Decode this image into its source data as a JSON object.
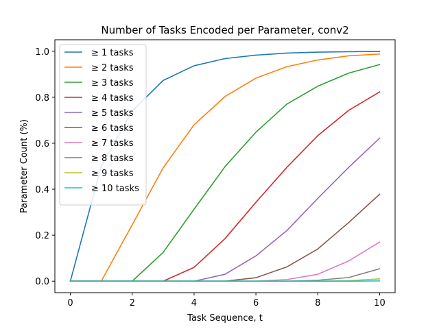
{
  "chart_data": {
    "type": "line",
    "title": "Number of Tasks Encoded per Parameter, conv2",
    "xlabel": "Task Sequence, t",
    "ylabel": "Parameter Count (%)",
    "xlim": [
      -0.5,
      10.5
    ],
    "ylim": [
      -0.05,
      1.05
    ],
    "xticks": [
      0,
      2,
      4,
      6,
      8,
      10
    ],
    "yticks": [
      0.0,
      0.2,
      0.4,
      0.6,
      0.8,
      1.0
    ],
    "xtick_labels": [
      "0",
      "2",
      "4",
      "6",
      "8",
      "10"
    ],
    "ytick_labels": [
      "0.0",
      "0.2",
      "0.4",
      "0.6",
      "0.8",
      "1.0"
    ],
    "grid": false,
    "legend_position": "top-left",
    "x": [
      0,
      1,
      2,
      3,
      4,
      5,
      6,
      7,
      8,
      9,
      10
    ],
    "series": [
      {
        "name": "≥ 1 tasks",
        "color": "#1f77b4",
        "values": [
          0.0,
          0.5,
          0.74,
          0.873,
          0.937,
          0.968,
          0.983,
          0.992,
          0.996,
          0.998,
          0.999
        ]
      },
      {
        "name": "≥ 2 tasks",
        "color": "#ff7f0e",
        "values": [
          0.0,
          0.0,
          0.245,
          0.493,
          0.68,
          0.803,
          0.883,
          0.933,
          0.962,
          0.98,
          0.988
        ]
      },
      {
        "name": "≥ 3 tasks",
        "color": "#2ca02c",
        "values": [
          0.0,
          0.0,
          0.0,
          0.125,
          0.313,
          0.498,
          0.648,
          0.77,
          0.848,
          0.905,
          0.942
        ]
      },
      {
        "name": "≥ 4 tasks",
        "color": "#d62728",
        "values": [
          0.0,
          0.0,
          0.0,
          0.0,
          0.06,
          0.185,
          0.343,
          0.495,
          0.633,
          0.743,
          0.823
        ]
      },
      {
        "name": "≥ 5 tasks",
        "color": "#9467bd",
        "values": [
          0.0,
          0.0,
          0.0,
          0.0,
          0.0,
          0.03,
          0.11,
          0.22,
          0.36,
          0.495,
          0.622
        ]
      },
      {
        "name": "≥ 6 tasks",
        "color": "#8c564b",
        "values": [
          0.0,
          0.0,
          0.0,
          0.0,
          0.0,
          0.0,
          0.015,
          0.062,
          0.14,
          0.255,
          0.378
        ]
      },
      {
        "name": "≥ 7 tasks",
        "color": "#e377c2",
        "values": [
          0.0,
          0.0,
          0.0,
          0.0,
          0.0,
          0.0,
          0.0,
          0.007,
          0.03,
          0.088,
          0.17
        ]
      },
      {
        "name": "≥ 8 tasks",
        "color": "#7f7f7f",
        "values": [
          0.0,
          0.0,
          0.0,
          0.0,
          0.0,
          0.0,
          0.0,
          0.0,
          0.004,
          0.016,
          0.054
        ]
      },
      {
        "name": "≥ 9 tasks",
        "color": "#bcbd22",
        "values": [
          0.0,
          0.0,
          0.0,
          0.0,
          0.0,
          0.0,
          0.0,
          0.0,
          0.0,
          0.002,
          0.01
        ]
      },
      {
        "name": "≥ 10 tasks",
        "color": "#17becf",
        "values": [
          0.0,
          0.0,
          0.0,
          0.0,
          0.0,
          0.0,
          0.0,
          0.0,
          0.0,
          0.0,
          0.001
        ]
      }
    ]
  }
}
